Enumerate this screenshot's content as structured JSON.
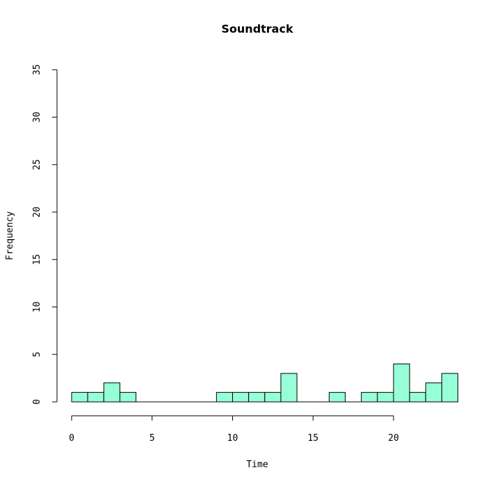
{
  "chart_data": {
    "type": "bar",
    "title": "Soundtrack",
    "xlabel": "Time",
    "ylabel": "Frequency",
    "xlim": [
      0,
      24
    ],
    "ylim": [
      0,
      35
    ],
    "x_ticks": [
      0,
      5,
      10,
      15,
      20
    ],
    "y_ticks": [
      0,
      5,
      10,
      15,
      20,
      25,
      30,
      35
    ],
    "bin_width": 1,
    "bin_starts": [
      0,
      1,
      2,
      3,
      4,
      5,
      6,
      7,
      8,
      9,
      10,
      11,
      12,
      13,
      14,
      15,
      16,
      17,
      18,
      19,
      20,
      21,
      22,
      23
    ],
    "values": [
      1,
      1,
      2,
      1,
      0,
      0,
      0,
      0,
      0,
      1,
      1,
      1,
      1,
      3,
      0,
      0,
      1,
      0,
      1,
      1,
      4,
      1,
      2,
      3
    ],
    "bar_color": "#96FFD7",
    "grid": false
  }
}
